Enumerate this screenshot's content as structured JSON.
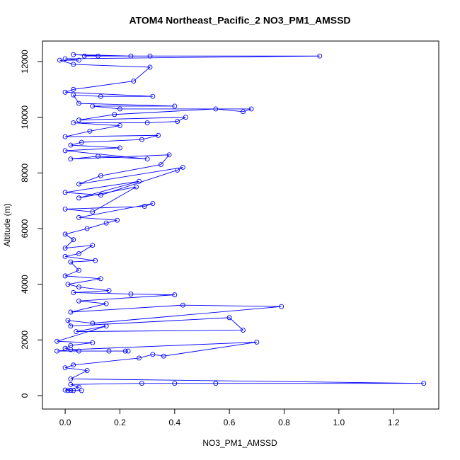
{
  "chart_data": {
    "type": "line",
    "title": "ATOM4 Northeast_Pacific_2 NO3_PM1_AMSSD",
    "x_label": "NO3_PM1_AMSSD",
    "y_label": "Altitude (m)",
    "color": "blue",
    "marker": "open-circle",
    "xlim": [
      -0.083,
      1.365
    ],
    "ylim": [
      -483,
      12738
    ],
    "xticks": [
      {
        "value": 0,
        "label": "0.0"
      },
      0.2,
      0.4,
      0.6,
      0.8,
      {
        "value": 1,
        "label": "1.0"
      },
      1.2
    ],
    "yticks": [
      0,
      2000,
      4000,
      6000,
      8000,
      10000,
      12000
    ],
    "x": [
      0.01,
      0.03,
      0.06,
      0.02,
      0.0,
      0.05,
      0.02,
      0.28,
      0.4,
      0.55,
      1.31,
      0.02,
      0.08,
      0.0,
      0.03,
      0.27,
      0.32,
      0.36,
      0.7,
      0.02,
      -0.03,
      0.16,
      0.23,
      0.22,
      0.05,
      0.0,
      0.02,
      0.1,
      -0.03,
      0.15,
      0.04,
      0.65,
      0.6,
      0.02,
      0.01,
      0.1,
      0.79,
      0.43,
      0.02,
      0.15,
      0.05,
      0.4,
      0.24,
      0.03,
      0.16,
      0.05,
      0.01,
      0.13,
      0.0,
      0.05,
      0.02,
      0.11,
      0.0,
      0.05,
      0.1,
      0.0,
      0.03,
      0.0,
      0.08,
      0.15,
      0.19,
      0.05,
      0.32,
      0.29,
      0.0,
      0.1,
      0.26,
      0.05,
      0.27,
      0.0,
      0.13,
      0.41,
      0.43,
      0.05,
      0.13,
      0.35,
      0.38,
      0.02,
      0.12,
      0.3,
      0.0,
      0.2,
      0.02,
      0.06,
      0.28,
      0.34,
      0.0,
      0.09,
      0.2,
      0.03,
      0.3,
      0.41,
      0.44,
      0.05,
      0.18,
      0.55,
      0.65,
      0.68,
      0.2,
      0.1,
      0.4,
      0.05,
      0.03,
      0.13,
      0.32,
      0.0,
      0.03,
      0.25,
      0.31,
      0.03,
      -0.02,
      0.05,
      0.0,
      0.93,
      0.31,
      0.12,
      0.03,
      0.24,
      0.07
    ],
    "y": [
      180,
      180,
      180,
      190,
      200,
      300,
      400,
      440,
      440,
      440,
      440,
      600,
      900,
      1000,
      1100,
      1350,
      1480,
      1420,
      1920,
      1650,
      1600,
      1600,
      1600,
      1600,
      1600,
      1700,
      1800,
      1900,
      1950,
      2500,
      2300,
      2350,
      2800,
      2500,
      2700,
      2600,
      3200,
      3250,
      3000,
      3300,
      3400,
      3620,
      3650,
      3700,
      3770,
      3900,
      4000,
      4200,
      4300,
      4500,
      4800,
      4850,
      5000,
      5100,
      5400,
      5300,
      5600,
      5800,
      6000,
      6200,
      6300,
      6400,
      6900,
      6800,
      6700,
      6600,
      7500,
      7100,
      7700,
      7300,
      7200,
      8100,
      8200,
      7600,
      7900,
      8300,
      8650,
      8500,
      8600,
      8500,
      8800,
      8900,
      9000,
      9100,
      9200,
      9350,
      9300,
      9500,
      9700,
      9800,
      9800,
      9850,
      10000,
      9900,
      10100,
      10300,
      10200,
      10300,
      10300,
      10400,
      10400,
      10500,
      10800,
      10750,
      10750,
      10900,
      11000,
      11300,
      11800,
      11900,
      12050,
      12050,
      12100,
      12200,
      12200,
      12200,
      12250,
      12200,
      12200
    ]
  }
}
